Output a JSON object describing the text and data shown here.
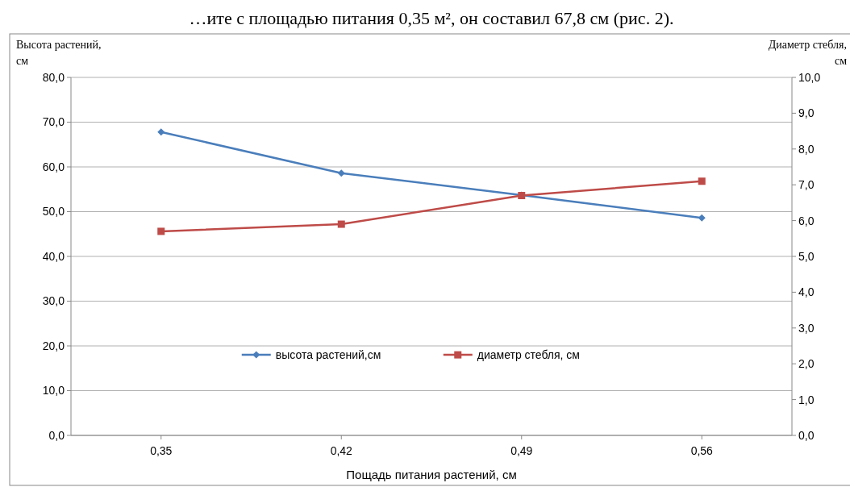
{
  "chart_data": {
    "type": "line",
    "xlabel": "Пощадь питания растений, см",
    "ylabel": "Высота растений, см",
    "y2label": "Диаметр стебля, см",
    "annotations": [
      "…ите с площадью питания 0,35 м², он составил 67,8 см (рис. 2)."
    ],
    "categories": [
      "0,35",
      "0,42",
      "0,49",
      "0,56"
    ],
    "series": [
      {
        "name": "высота растений,см",
        "color": "#4a7ebb",
        "values": [
          67.8,
          58.6,
          53.7,
          48.6
        ],
        "marker": "diamond"
      },
      {
        "name": "диаметр стебля, см",
        "color": "#be4b48",
        "values": [
          5.7,
          5.9,
          6.7,
          7.1
        ],
        "axis": "y2",
        "marker": "square"
      }
    ],
    "ylim": [
      0,
      80
    ],
    "yticks": [
      {
        "value": 0,
        "label": "0,0"
      },
      {
        "value": 10,
        "label": "10,0"
      },
      {
        "value": 20,
        "label": "20,0"
      },
      {
        "value": 30,
        "label": "30,0"
      },
      {
        "value": 40,
        "label": "40,0"
      },
      {
        "value": 50,
        "label": "50,0"
      },
      {
        "value": 60,
        "label": "60,0"
      },
      {
        "value": 70,
        "label": "70,0"
      },
      {
        "value": 80,
        "label": "80,0"
      }
    ],
    "y2lim": [
      0,
      10
    ],
    "y2ticks": [
      {
        "value": 0,
        "label": "0,0"
      },
      {
        "value": 1,
        "label": "1,0"
      },
      {
        "value": 2,
        "label": "2,0"
      },
      {
        "value": 3,
        "label": "3,0"
      },
      {
        "value": 4,
        "label": "4,0"
      },
      {
        "value": 5,
        "label": "5,0"
      },
      {
        "value": 6,
        "label": "6,0"
      },
      {
        "value": 7,
        "label": "7,0"
      },
      {
        "value": 8,
        "label": "8,0"
      },
      {
        "value": 9,
        "label": "9,0"
      },
      {
        "value": 10,
        "label": "10,0"
      }
    ],
    "grid": "y",
    "legend": "bottom",
    "line_style": "solid"
  }
}
